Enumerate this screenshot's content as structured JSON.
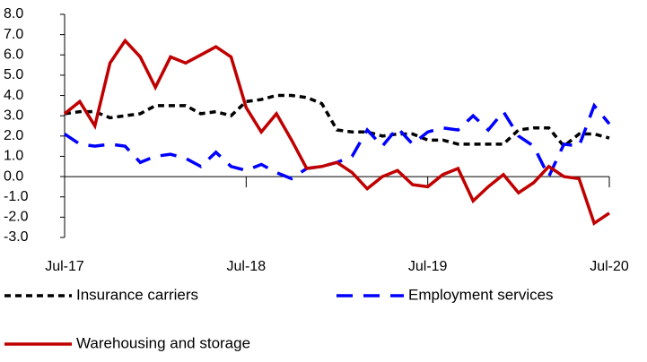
{
  "chart_data": {
    "type": "line",
    "categories": [
      "Jul-17",
      null,
      null,
      null,
      null,
      null,
      null,
      null,
      null,
      null,
      null,
      null,
      "Jul-18",
      null,
      null,
      null,
      null,
      null,
      null,
      null,
      null,
      null,
      null,
      null,
      "Jul-19",
      null,
      null,
      null,
      null,
      null,
      null,
      null,
      null,
      null,
      null,
      null,
      "Jul-20"
    ],
    "series": [
      {
        "name": "Insurance carriers",
        "color": "#000000",
        "dash": "7,5",
        "values": [
          3.1,
          3.2,
          3.2,
          2.9,
          3.0,
          3.1,
          3.5,
          3.5,
          3.5,
          3.1,
          3.2,
          3.0,
          3.7,
          3.8,
          4.0,
          4.0,
          3.9,
          3.6,
          2.3,
          2.2,
          2.2,
          2.0,
          2.1,
          2.1,
          1.8,
          1.8,
          1.6,
          1.6,
          1.6,
          1.6,
          2.3,
          2.4,
          2.4,
          1.5,
          2.1,
          2.1,
          1.9
        ]
      },
      {
        "name": "Employment services",
        "color": "#0000ff",
        "dash": "18,12",
        "values": [
          2.1,
          1.6,
          1.5,
          1.6,
          1.5,
          0.7,
          1.0,
          1.1,
          0.9,
          0.5,
          1.2,
          0.5,
          0.3,
          0.6,
          0.2,
          -0.1,
          0.4,
          0.5,
          0.7,
          1.0,
          2.3,
          1.5,
          2.4,
          1.6,
          2.2,
          2.4,
          2.3,
          3.0,
          2.3,
          3.2,
          2.0,
          1.5,
          0.0,
          1.6,
          1.5,
          3.5,
          2.6
        ]
      },
      {
        "name": "Warehousing and storage",
        "color": "#c00000",
        "dash": null,
        "values": [
          3.1,
          3.7,
          2.5,
          5.6,
          6.7,
          5.9,
          4.4,
          5.9,
          5.6,
          6.0,
          6.4,
          5.9,
          3.4,
          2.2,
          3.1,
          1.8,
          0.4,
          0.5,
          0.7,
          0.2,
          -0.6,
          0.0,
          0.3,
          -0.4,
          -0.5,
          0.1,
          0.4,
          -1.2,
          -0.5,
          0.1,
          -0.8,
          -0.3,
          0.5,
          0.0,
          -0.1,
          -2.3,
          -1.8
        ]
      }
    ],
    "ylim": [
      -3,
      8
    ],
    "yticks": [
      {
        "value": -3,
        "label": "-3.0"
      },
      {
        "value": -2,
        "label": "-2.0"
      },
      {
        "value": -1,
        "label": "-1.0"
      },
      {
        "value": 0,
        "label": "0.0"
      },
      {
        "value": 1,
        "label": "1.0"
      },
      {
        "value": 2,
        "label": "2.0"
      },
      {
        "value": 3,
        "label": "3.0"
      },
      {
        "value": 4,
        "label": "4.0"
      },
      {
        "value": 5,
        "label": "5.0"
      },
      {
        "value": 6,
        "label": "6.0"
      },
      {
        "value": 7,
        "label": "7.0"
      },
      {
        "value": 8,
        "label": "8.0"
      }
    ],
    "grid": false,
    "legend": "bottom"
  }
}
